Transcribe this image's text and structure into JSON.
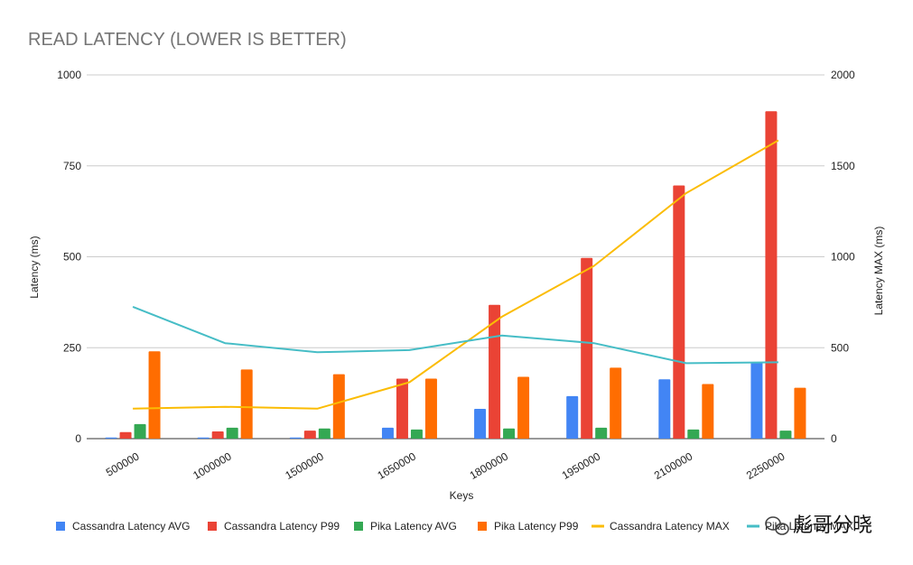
{
  "chart_data": {
    "type": "bar",
    "title": "READ LATENCY (LOWER IS BETTER)",
    "xlabel": "Keys",
    "ylabel": "Latency (ms)",
    "y2label": "Latency MAX (ms)",
    "ylim": [
      0,
      1000
    ],
    "y2lim": [
      0,
      2000
    ],
    "yticks": [
      "0",
      "250",
      "500",
      "750",
      "1000"
    ],
    "y2ticks": [
      "0",
      "500",
      "1000",
      "1500",
      "2000"
    ],
    "grid": true,
    "legend_position": "bottom",
    "categories": [
      "500000",
      "1000000",
      "1500000",
      "1650000",
      "1800000",
      "1950000",
      "2100000",
      "2250000"
    ],
    "series": [
      {
        "name": "Cassandra Latency AVG",
        "kind": "bar",
        "axis": "left",
        "color": "#4285f4",
        "values": [
          3,
          3,
          3,
          30,
          82,
          117,
          163,
          210
        ]
      },
      {
        "name": "Cassandra Latency P99",
        "kind": "bar",
        "axis": "left",
        "color": "#ea4335",
        "values": [
          18,
          20,
          22,
          165,
          368,
          497,
          696,
          900
        ]
      },
      {
        "name": "Pika Latency AVG",
        "kind": "bar",
        "axis": "left",
        "color": "#34a853",
        "values": [
          40,
          30,
          28,
          25,
          28,
          30,
          25,
          22
        ]
      },
      {
        "name": "Pika Latency P99",
        "kind": "bar",
        "axis": "left",
        "color": "#ff6d01",
        "values": [
          240,
          190,
          177,
          165,
          170,
          195,
          150,
          140
        ]
      },
      {
        "name": "Cassandra Latency MAX",
        "kind": "line",
        "axis": "right",
        "color": "#fbbc04",
        "values": [
          165,
          175,
          165,
          310,
          670,
          950,
          1350,
          1640
        ]
      },
      {
        "name": "Pika Latency MAX",
        "kind": "line",
        "axis": "right",
        "color": "#46bdc6",
        "values": [
          725,
          525,
          475,
          487,
          567,
          525,
          415,
          420
        ]
      }
    ]
  },
  "legend_items": [
    {
      "label": "Cassandra Latency AVG",
      "color": "#4285f4",
      "marker": "square"
    },
    {
      "label": "Cassandra Latency P99",
      "color": "#ea4335",
      "marker": "square"
    },
    {
      "label": "Pika Latency AVG",
      "color": "#34a853",
      "marker": "square"
    },
    {
      "label": "Pika Latency P99",
      "color": "#ff6d01",
      "marker": "square"
    },
    {
      "label": "Cassandra Latency MAX",
      "color": "#fbbc04",
      "marker": "line"
    },
    {
      "label": "Pika Latency MAX",
      "color": "#46bdc6",
      "marker": "line"
    }
  ],
  "watermark": {
    "text": "彪哥分晓",
    "icon": "wechat-icon"
  }
}
